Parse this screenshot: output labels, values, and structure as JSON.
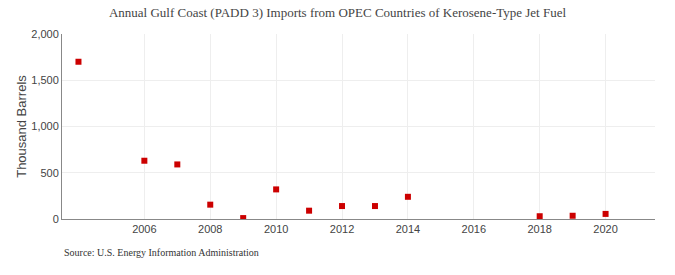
{
  "chart_data": {
    "type": "scatter",
    "title": "Annual Gulf Coast (PADD 3) Imports from OPEC Countries of Kerosene-Type Jet Fuel",
    "y_label": "Thousand Barrels",
    "annotations": [
      "Source: U.S. Energy Information Administration"
    ],
    "x": [
      2004,
      2006,
      2007,
      2008,
      2009,
      2010,
      2011,
      2012,
      2013,
      2014,
      2018,
      2019,
      2020
    ],
    "values": [
      1700,
      630,
      590,
      155,
      10,
      320,
      90,
      140,
      140,
      240,
      30,
      35,
      55
    ],
    "color": "#cc0000",
    "marker": "square",
    "xlim": [
      2003.5,
      2021.5
    ],
    "ylim": [
      0,
      2000
    ],
    "xticks": [
      2006,
      2008,
      2010,
      2012,
      2014,
      2016,
      2018,
      2020
    ],
    "yticks": [
      0,
      500,
      {
        "value": 1000,
        "label": "1,000"
      },
      {
        "value": 1500,
        "label": "1,500"
      },
      {
        "value": 2000,
        "label": "2,000"
      }
    ],
    "grid": true
  }
}
